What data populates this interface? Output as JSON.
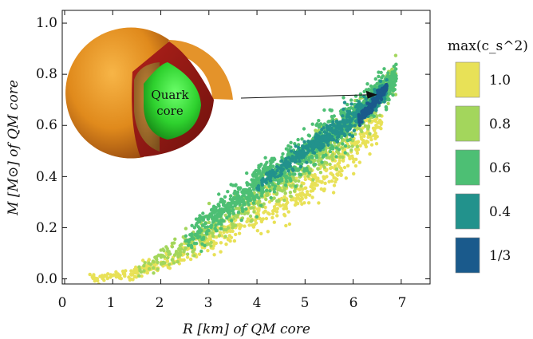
{
  "chart_data": {
    "type": "scatter",
    "xlabel": "R [km] of QM core",
    "ylabel": "M [M⊙] of QM core",
    "xlim": [
      -0.05,
      7.6
    ],
    "ylim": [
      -0.02,
      1.05
    ],
    "xticks": [
      "0",
      "1",
      "2",
      "3",
      "4",
      "5",
      "6",
      "7"
    ],
    "yticks": [
      "0.0",
      "0.2",
      "0.4",
      "0.6",
      "0.8",
      "1.0"
    ],
    "grid": false,
    "legend": {
      "title": "max(c_s^2) ≤",
      "placement": "right",
      "entries": [
        {
          "label": "1.0",
          "color": "#e8e157"
        },
        {
          "label": "0.8",
          "color": "#a3d65c"
        },
        {
          "label": "0.6",
          "color": "#4dbf74"
        },
        {
          "label": "0.4",
          "color": "#22928c"
        },
        {
          "label": "1/3",
          "color": "#1a5a8c"
        }
      ]
    },
    "series": [
      {
        "name": "1.0",
        "color": "#e8e157",
        "band": [
          [
            0.5,
            0.0,
            0.01
          ],
          [
            1.5,
            0.02,
            0.02
          ],
          [
            2.5,
            0.1,
            0.04
          ],
          [
            3.5,
            0.2,
            0.05
          ],
          [
            4.5,
            0.3,
            0.06
          ],
          [
            5.5,
            0.42,
            0.07
          ],
          [
            6.0,
            0.52,
            0.07
          ],
          [
            6.6,
            0.62,
            0.05
          ]
        ]
      },
      {
        "name": "0.8",
        "color": "#a3d65c",
        "band": [
          [
            1.5,
            0.03,
            0.02
          ],
          [
            2.5,
            0.13,
            0.05
          ],
          [
            3.5,
            0.25,
            0.06
          ],
          [
            4.5,
            0.37,
            0.06
          ],
          [
            5.5,
            0.52,
            0.07
          ],
          [
            6.3,
            0.65,
            0.06
          ],
          [
            6.9,
            0.8,
            0.06
          ]
        ]
      },
      {
        "name": "0.6",
        "color": "#4dbf74",
        "band": [
          [
            2.5,
            0.15,
            0.04
          ],
          [
            3.5,
            0.3,
            0.06
          ],
          [
            4.5,
            0.43,
            0.06
          ],
          [
            5.5,
            0.56,
            0.06
          ],
          [
            6.2,
            0.67,
            0.06
          ],
          [
            6.9,
            0.78,
            0.05
          ]
        ]
      },
      {
        "name": "0.4",
        "color": "#22928c",
        "band": [
          [
            4.0,
            0.36,
            0.02
          ],
          [
            5.0,
            0.5,
            0.03
          ],
          [
            5.8,
            0.6,
            0.04
          ],
          [
            6.3,
            0.68,
            0.04
          ],
          [
            6.7,
            0.74,
            0.03
          ]
        ]
      },
      {
        "name": "1/3",
        "color": "#1a5a8c",
        "band": [
          [
            6.1,
            0.62,
            0.02
          ],
          [
            6.4,
            0.68,
            0.02
          ],
          [
            6.6,
            0.73,
            0.02
          ],
          [
            6.7,
            0.75,
            0.01
          ]
        ]
      }
    ],
    "annotation": {
      "text": "Quark core",
      "line1": "Quark",
      "line2": "core",
      "arrow_to": [
        6.5,
        0.72
      ]
    }
  }
}
